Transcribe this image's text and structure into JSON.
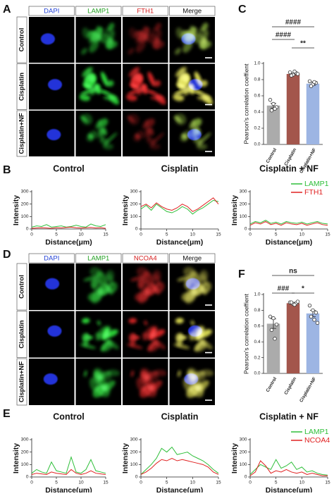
{
  "panel_labels": [
    "A",
    "B",
    "C",
    "D",
    "E",
    "F"
  ],
  "image_grids": [
    {
      "columns": [
        "DAPI",
        "LAMP1",
        "FTH1",
        "Merge"
      ],
      "column_colors": [
        "#1f3fd6",
        "#22a022",
        "#d62020",
        "#111111"
      ],
      "rows": [
        "Control",
        "Cisplatin",
        "Cisplatin+NF"
      ]
    },
    {
      "columns": [
        "DAPI",
        "LAMP1",
        "NCOA4",
        "Merge"
      ],
      "column_colors": [
        "#1f3fd6",
        "#22a022",
        "#d62020",
        "#111111"
      ],
      "rows": [
        "Control",
        "Cisplatin",
        "Cisplatin+NF"
      ]
    }
  ],
  "chart_data": [
    {
      "type": "bar",
      "ylabel": "Pearson's correlation coeffient",
      "categories": [
        "Control",
        "Cisplatin",
        "Cisplatin+NF"
      ],
      "values": [
        0.48,
        0.87,
        0.75
      ],
      "errors": [
        0.03,
        0.01,
        0.02
      ],
      "colors": [
        "#ababab",
        "#a3564c",
        "#9db5e3"
      ],
      "points": [
        [
          0.55,
          0.5,
          0.46,
          0.42,
          0.44
        ],
        [
          0.89,
          0.86,
          0.88,
          0.85,
          0.9,
          0.87
        ],
        [
          0.78,
          0.74,
          0.76,
          0.72,
          0.77
        ]
      ],
      "ylim": [
        0,
        1.0
      ],
      "yticks": [
        {
          "value": 0,
          "label": "0.0"
        },
        0.2,
        0.4,
        0.6,
        0.8,
        {
          "value": 1.0,
          "label": "1.0"
        }
      ],
      "annotations": [
        "####",
        "####",
        "**"
      ]
    },
    {
      "type": "bar",
      "ylabel": "Pearson's correlation coeffient",
      "categories": [
        "Control",
        "Cisplatin",
        "Cisplatin+NF"
      ],
      "values": [
        0.63,
        0.89,
        0.76
      ],
      "errors": [
        0.06,
        0.01,
        0.04
      ],
      "colors": [
        "#ababab",
        "#a3564c",
        "#9db5e3"
      ],
      "points": [
        [
          0.72,
          0.7,
          0.62,
          0.55,
          0.44
        ],
        [
          0.9,
          0.88,
          0.89,
          0.9,
          0.87,
          0.91
        ],
        [
          0.86,
          0.8,
          0.77,
          0.72,
          0.68,
          0.64
        ]
      ],
      "ylim": [
        0,
        1.0
      ],
      "yticks": [
        {
          "value": 0,
          "label": "0.0"
        },
        0.2,
        0.4,
        0.6,
        0.8,
        {
          "value": 1.0,
          "label": "1.0"
        }
      ],
      "annotations": [
        "ns",
        "###",
        "*"
      ]
    },
    {
      "type": "line",
      "title": "Control",
      "xlabel": "Distance(μm)",
      "ylabel": "Intensity",
      "legend": false,
      "x": [
        0,
        1,
        2,
        3,
        4,
        5,
        6,
        7,
        8,
        9,
        10,
        11,
        12,
        13,
        14,
        15
      ],
      "xlim": [
        0,
        15
      ],
      "xticks": [
        0,
        5,
        10,
        15
      ],
      "ylim": [
        0,
        300
      ],
      "yticks": [
        0,
        100,
        200,
        300
      ],
      "series": [
        {
          "color": "#2fbf3a",
          "values": [
            15,
            25,
            20,
            35,
            15,
            20,
            25,
            15,
            20,
            30,
            20,
            15,
            40,
            25,
            20,
            35
          ]
        },
        {
          "color": "#e02020",
          "values": [
            5,
            8,
            10,
            8,
            5,
            10,
            8,
            12,
            15,
            10,
            8,
            10,
            12,
            8,
            10,
            5
          ]
        }
      ]
    },
    {
      "type": "line",
      "title": "Cisplatin",
      "xlabel": "Distance(μm)",
      "ylabel": "Intensity",
      "legend": false,
      "x": [
        0,
        1,
        2,
        3,
        4,
        5,
        6,
        7,
        8,
        9,
        10,
        11,
        12,
        13,
        14,
        15
      ],
      "xlim": [
        0,
        15
      ],
      "xticks": [
        0,
        5,
        10,
        15
      ],
      "ylim": [
        0,
        300
      ],
      "yticks": [
        0,
        100,
        200,
        300
      ],
      "series": [
        {
          "color": "#2fbf3a",
          "values": [
            160,
            190,
            150,
            200,
            170,
            140,
            130,
            150,
            180,
            160,
            120,
            150,
            170,
            200,
            230,
            220
          ]
        },
        {
          "color": "#e02020",
          "values": [
            180,
            200,
            170,
            210,
            180,
            160,
            150,
            170,
            200,
            180,
            140,
            160,
            190,
            220,
            250,
            200
          ]
        }
      ]
    },
    {
      "type": "line",
      "title": "Cisplatin + NF",
      "xlabel": "Distance(μm)",
      "ylabel": "Intensity",
      "legend": true,
      "x": [
        0,
        1,
        2,
        3,
        4,
        5,
        6,
        7,
        8,
        9,
        10,
        11,
        12,
        13,
        14,
        15
      ],
      "xlim": [
        0,
        15
      ],
      "xticks": [
        0,
        5,
        10,
        15
      ],
      "ylim": [
        0,
        300
      ],
      "yticks": [
        0,
        100,
        200,
        300
      ],
      "series": [
        {
          "name": "LAMP1",
          "color": "#2fbf3a",
          "values": [
            40,
            60,
            50,
            70,
            45,
            55,
            40,
            60,
            50,
            45,
            55,
            40,
            50,
            60,
            45,
            40
          ]
        },
        {
          "name": "FTH1",
          "color": "#e02020",
          "values": [
            30,
            50,
            40,
            60,
            35,
            45,
            30,
            50,
            40,
            35,
            45,
            30,
            40,
            50,
            35,
            30
          ]
        }
      ]
    },
    {
      "type": "line",
      "title": "Control",
      "xlabel": "Distance(μm)",
      "ylabel": "Intensity",
      "legend": false,
      "x": [
        0,
        1,
        2,
        3,
        4,
        5,
        6,
        7,
        8,
        9,
        10,
        11,
        12,
        13,
        14,
        15
      ],
      "xlim": [
        0,
        15
      ],
      "xticks": [
        0,
        5,
        10,
        15
      ],
      "ylim": [
        0,
        300
      ],
      "yticks": [
        0,
        100,
        200,
        300
      ],
      "series": [
        {
          "color": "#2fbf3a",
          "values": [
            30,
            60,
            40,
            30,
            120,
            50,
            40,
            30,
            160,
            40,
            30,
            60,
            140,
            50,
            40,
            30
          ]
        },
        {
          "color": "#e02020",
          "values": [
            20,
            30,
            25,
            20,
            40,
            30,
            25,
            20,
            60,
            30,
            20,
            30,
            50,
            30,
            25,
            20
          ]
        }
      ]
    },
    {
      "type": "line",
      "title": "Cisplatin",
      "xlabel": "Distance(μm)",
      "ylabel": "Intensity",
      "legend": false,
      "x": [
        0,
        1,
        2,
        3,
        4,
        5,
        6,
        7,
        8,
        9,
        10,
        11,
        12,
        13,
        14,
        15
      ],
      "xlim": [
        0,
        15
      ],
      "xticks": [
        0,
        5,
        10,
        15
      ],
      "ylim": [
        0,
        300
      ],
      "yticks": [
        0,
        100,
        200,
        300
      ],
      "series": [
        {
          "color": "#2fbf3a",
          "values": [
            20,
            60,
            100,
            150,
            230,
            200,
            240,
            180,
            190,
            200,
            170,
            150,
            130,
            100,
            60,
            30
          ]
        },
        {
          "color": "#e02020",
          "values": [
            20,
            40,
            70,
            110,
            140,
            130,
            150,
            130,
            140,
            130,
            120,
            110,
            100,
            80,
            40,
            20
          ]
        }
      ]
    },
    {
      "type": "line",
      "title": "Cisplatin + NF",
      "xlabel": "Distance(μm)",
      "ylabel": "Intensity",
      "legend": true,
      "x": [
        0,
        1,
        2,
        3,
        4,
        5,
        6,
        7,
        8,
        9,
        10,
        11,
        12,
        13,
        14,
        15
      ],
      "xlim": [
        0,
        15
      ],
      "xticks": [
        0,
        5,
        10,
        15
      ],
      "ylim": [
        0,
        300
      ],
      "yticks": [
        0,
        100,
        200,
        300
      ],
      "series": [
        {
          "name": "LAMP1",
          "color": "#2fbf3a",
          "values": [
            20,
            60,
            100,
            80,
            60,
            140,
            70,
            90,
            120,
            60,
            80,
            40,
            50,
            30,
            20,
            15
          ]
        },
        {
          "name": "NCOA4",
          "color": "#e02020",
          "values": [
            10,
            40,
            130,
            90,
            30,
            50,
            40,
            60,
            40,
            30,
            40,
            20,
            30,
            20,
            10,
            10
          ]
        }
      ]
    }
  ]
}
